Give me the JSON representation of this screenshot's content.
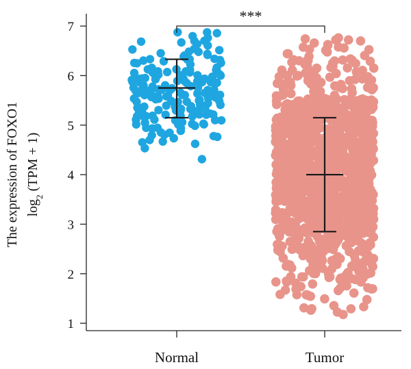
{
  "chart_data": {
    "type": "scatter",
    "title": "",
    "ylabel_line1": "The expression of FOXO1",
    "ylabel_line2_prefix": "log",
    "ylabel_line2_sub": "2",
    "ylabel_line2_suffix": " (TPM + 1)",
    "ylim": [
      0.85,
      7.25
    ],
    "yticks": [
      "1",
      "2",
      "3",
      "4",
      "5",
      "6",
      "7"
    ],
    "categories": [
      "Normal",
      "Tumor"
    ],
    "series": [
      {
        "name": "Normal",
        "color": "#1fa6e0",
        "mean": 5.75,
        "sd_low": 5.15,
        "sd_high": 6.33,
        "y_range": [
          4.15,
          6.95
        ],
        "n_points": 180
      },
      {
        "name": "Tumor",
        "color": "#e8948a",
        "mean": 4.0,
        "sd_low": 2.85,
        "sd_high": 5.15,
        "y_range": [
          1.15,
          6.8
        ],
        "n_points": 1200
      }
    ],
    "significance": "***",
    "grid": false,
    "legend": "none"
  }
}
